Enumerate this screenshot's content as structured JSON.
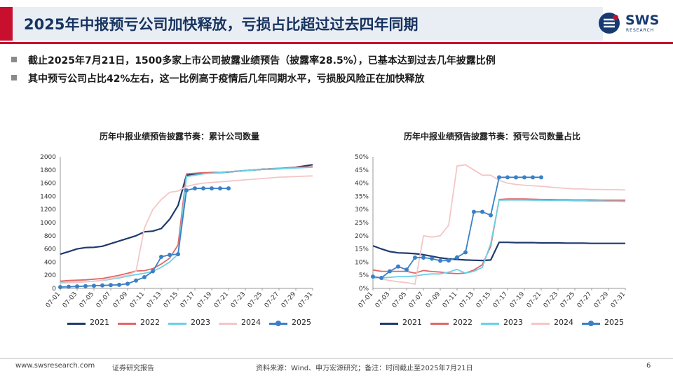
{
  "header": {
    "title": "2025年中报预亏公司加快释放，亏损占比超过过去四年同期"
  },
  "logo": {
    "name": "SWS",
    "sub": "RESEARCH",
    "colors": {
      "primary": "#173a73",
      "accent": "#c8102e"
    }
  },
  "bullets": [
    "截止2025年7月21日，1500多家上市公司披露业绩预告（披露率28.5%），已基本达到过去几年披露比例",
    "其中预亏公司占比42%左右，这一比例高于疫情后几年同期水平，亏损股风险正在加快释放"
  ],
  "footer": {
    "website": "www.swsresearch.com",
    "report_type": "证券研究报告",
    "source": "资料来源：Wind、申万宏源研究；备注：时间截止至2025年7月21日",
    "page": "6"
  },
  "colors": {
    "2021": "#1f3a6e",
    "2022": "#e06666",
    "2023": "#6ad1e8",
    "2024": "#f5c6c6",
    "2025": "#3a80c7"
  },
  "x_dates": [
    "07-01",
    "07-02",
    "07-03",
    "07-04",
    "07-05",
    "07-06",
    "07-07",
    "07-08",
    "07-09",
    "07-10",
    "07-11",
    "07-12",
    "07-13",
    "07-14",
    "07-15",
    "07-16",
    "07-17",
    "07-18",
    "07-19",
    "07-20",
    "07-21",
    "07-22",
    "07-23",
    "07-24",
    "07-25",
    "07-26",
    "07-27",
    "07-28",
    "07-29",
    "07-30",
    "07-31"
  ],
  "x_tick_labels": [
    "07-01",
    "07-03",
    "07-05",
    "07-07",
    "07-09",
    "07-11",
    "07-13",
    "07-15",
    "07-17",
    "07-19",
    "07-21",
    "07-23",
    "07-25",
    "07-27",
    "07-29",
    "07-31"
  ],
  "chart_data": [
    {
      "type": "line",
      "title": "历年中报业绩预告披露节奏：累计公司数量",
      "xlabel": "",
      "ylabel": "",
      "ylim": [
        0,
        2000
      ],
      "y_ticks": [
        "0",
        "200",
        "400",
        "600",
        "800",
        "1000",
        "1200",
        "1400",
        "1600",
        "1800",
        "2000"
      ],
      "grid": false,
      "legend_position": "bottom",
      "series": [
        {
          "name": "2021",
          "values": [
            520,
            560,
            600,
            620,
            625,
            640,
            680,
            720,
            760,
            800,
            860,
            870,
            910,
            1050,
            1260,
            1720,
            1740,
            1750,
            1760,
            1760,
            1770,
            1780,
            1790,
            1800,
            1810,
            1815,
            1820,
            1830,
            1840,
            1860,
            1880
          ]
        },
        {
          "name": "2022",
          "values": [
            110,
            120,
            125,
            130,
            140,
            150,
            175,
            200,
            230,
            265,
            270,
            300,
            370,
            460,
            660,
            1740,
            1750,
            1760,
            1760,
            1760,
            1770,
            1780,
            1790,
            1800,
            1810,
            1820,
            1825,
            1830,
            1840,
            1845,
            1850
          ]
        },
        {
          "name": "2023",
          "values": [
            90,
            95,
            95,
            100,
            110,
            120,
            140,
            160,
            185,
            210,
            230,
            260,
            320,
            400,
            520,
            1700,
            1720,
            1740,
            1750,
            1760,
            1770,
            1780,
            1790,
            1800,
            1810,
            1815,
            1820,
            1825,
            1830,
            1835,
            1840
          ]
        },
        {
          "name": "2024",
          "values": [
            80,
            85,
            90,
            100,
            110,
            125,
            150,
            175,
            200,
            260,
            920,
            1200,
            1350,
            1460,
            1480,
            1550,
            1580,
            1600,
            1610,
            1620,
            1630,
            1640,
            1650,
            1660,
            1670,
            1680,
            1690,
            1695,
            1700,
            1705,
            1710
          ]
        },
        {
          "name": "2025",
          "values": [
            20,
            25,
            30,
            35,
            40,
            45,
            50,
            55,
            70,
            120,
            170,
            260,
            480,
            510,
            520,
            1490,
            1520,
            1520,
            1520,
            1520,
            1520
          ]
        }
      ]
    },
    {
      "type": "line",
      "title": "历年中报业绩预告披露节奏：预亏公司数量占比",
      "xlabel": "",
      "ylabel": "",
      "ylim": [
        0,
        50
      ],
      "y_unit": "%",
      "y_ticks": [
        "0%",
        "5%",
        "10%",
        "15%",
        "20%",
        "25%",
        "30%",
        "35%",
        "40%",
        "45%",
        "50%"
      ],
      "grid": false,
      "legend_position": "bottom",
      "series": [
        {
          "name": "2021",
          "values": [
            16.2,
            15.0,
            14.0,
            13.5,
            13.4,
            13.2,
            12.8,
            12.2,
            11.6,
            11.2,
            11.0,
            10.8,
            10.7,
            10.6,
            10.8,
            17.5,
            17.5,
            17.4,
            17.4,
            17.4,
            17.3,
            17.3,
            17.3,
            17.2,
            17.2,
            17.2,
            17.1,
            17.1,
            17.1,
            17.1,
            17.1
          ]
        },
        {
          "name": "2022",
          "values": [
            7.0,
            6.5,
            6.5,
            6.5,
            6.5,
            5.8,
            6.8,
            6.4,
            6.2,
            5.8,
            5.6,
            5.8,
            7.0,
            9.0,
            16.0,
            33.8,
            34.0,
            34.0,
            34.0,
            33.9,
            33.8,
            33.8,
            33.7,
            33.7,
            33.6,
            33.6,
            33.6,
            33.5,
            33.5,
            33.5,
            33.5
          ]
        },
        {
          "name": "2023",
          "values": [
            4.0,
            4.0,
            4.2,
            4.5,
            4.5,
            4.7,
            5.2,
            5.5,
            5.5,
            6.2,
            7.2,
            5.8,
            6.5,
            8.0,
            17.0,
            33.5,
            33.6,
            33.6,
            33.6,
            33.5,
            33.5,
            33.4,
            33.4,
            33.4,
            33.3,
            33.3,
            33.2,
            33.2,
            33.1,
            33.1,
            33.0
          ]
        },
        {
          "name": "2024",
          "values": [
            4.5,
            3.6,
            3.0,
            2.5,
            2.2,
            1.6,
            20.0,
            19.5,
            20.0,
            24.0,
            46.5,
            47.0,
            45.0,
            43.0,
            43.0,
            41.0,
            40.0,
            39.5,
            39.2,
            39.0,
            38.8,
            38.5,
            38.2,
            38.0,
            37.8,
            37.8,
            37.6,
            37.6,
            37.5,
            37.5,
            37.4
          ]
        },
        {
          "name": "2025",
          "values": [
            4.5,
            4.0,
            6.5,
            8.3,
            7.1,
            11.7,
            11.7,
            11.3,
            10.5,
            10.6,
            11.8,
            13.7,
            29.1,
            29.1,
            27.8,
            42.2,
            42.2,
            42.2,
            42.2,
            42.2,
            42.2
          ]
        }
      ]
    }
  ]
}
